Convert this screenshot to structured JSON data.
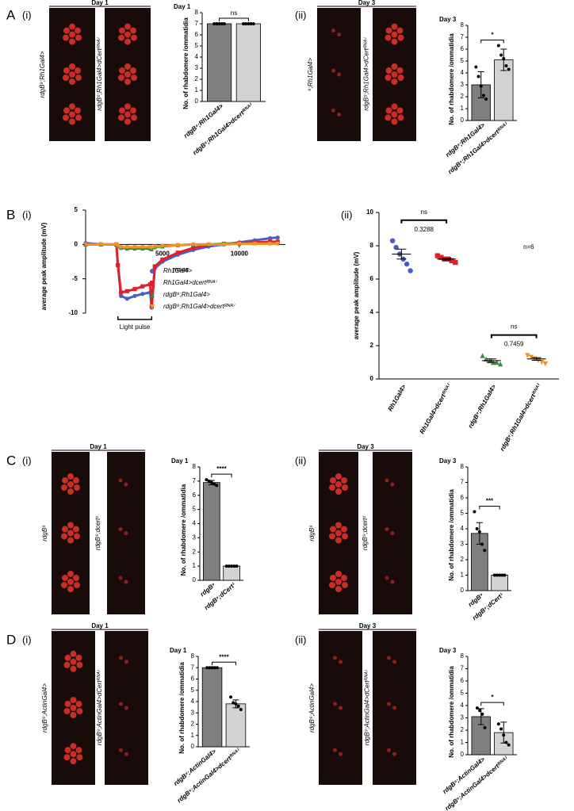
{
  "figure": {
    "panel_letters": [
      "A",
      "B",
      "C",
      "D"
    ],
    "subpanel_labels": [
      "(i)",
      "(ii)",
      "(i)",
      "(ii)",
      "(i)",
      "(ii)",
      "(i)",
      "(ii)"
    ],
    "image_panels": [
      {
        "header": "Day 1",
        "labels": [
          "rdgB⁹;Rh1Gal4>",
          "rdgB⁹;Rh1Gal4>dCertᴿᴺᴬⁱ"
        ]
      },
      {
        "header": "Day 3",
        "labels": [
          "⁹;Rh1Gal4>",
          "rdgB⁹;Rh1Gal4>dCertᴿᴺᴬⁱ"
        ]
      },
      {
        "header": "Day 1",
        "labels": [
          "rdgB⁹",
          "rdgB⁹;dcert¹"
        ]
      },
      {
        "header": "Day 3",
        "labels": [
          "rdgB⁹",
          "rdgB⁹;dcert¹"
        ]
      },
      {
        "header": "Day 1",
        "labels": [
          "rdgB⁹;ActinGal4>",
          "rdgB⁹;ActinGal4>dCertᴿᴺᴬⁱ"
        ]
      },
      {
        "header": "Day 3",
        "labels": [
          "rdgB⁹;ActinGal4>",
          "rdgB⁹;ActinGal4>dCertᴿᴺᴬⁱ"
        ]
      }
    ]
  },
  "chart_data": [
    {
      "type": "bar",
      "title": "Day 1",
      "ylabel": "No. of rhabdomere /ommatidia",
      "categories": [
        "rdgB⁹;Rh1Gal4>",
        "rdgB⁹;Rh1Gal4>dcertᴿᴺᴬⁱ"
      ],
      "values": [
        7,
        7
      ],
      "errors": [
        0,
        0
      ],
      "points": [
        [
          7,
          7,
          7,
          7,
          7
        ],
        [
          7,
          7,
          7,
          7,
          7
        ]
      ],
      "colors": [
        "#7f7f7f",
        "#d3d3d3"
      ],
      "significance": "ns",
      "ylim": [
        0,
        8
      ],
      "yticks": [
        0,
        1,
        2,
        3,
        4,
        5,
        6,
        7,
        8
      ]
    },
    {
      "type": "bar",
      "title": "Day 3",
      "ylabel": "No. of rhabdomere /ommatidia",
      "categories": [
        "rdgB⁹;Rh1Gal4>",
        "rdgB⁹;Rh1Gal4>dcertᴿᴺᴬⁱ"
      ],
      "values": [
        3,
        5.1
      ],
      "errors": [
        1.1,
        0.9
      ],
      "points": [
        [
          4.5,
          3.7,
          2.9,
          2.1,
          1.8
        ],
        [
          6.3,
          5.5,
          5.2,
          4.6,
          4.3
        ]
      ],
      "colors": [
        "#7f7f7f",
        "#d3d3d3"
      ],
      "significance": "*",
      "ylim": [
        0,
        8
      ],
      "yticks": [
        0,
        1,
        2,
        3,
        4,
        5,
        6,
        7,
        8
      ]
    },
    {
      "type": "line",
      "ylabel": "average peak amplitude (mV)",
      "xlabel": "msec",
      "x": [
        0,
        1000,
        2000,
        2100,
        2300,
        2700,
        3200,
        3700,
        4200,
        4300,
        4500,
        5000,
        6000,
        7000,
        8000,
        9000,
        10000,
        11000,
        12000,
        12500
      ],
      "series": [
        {
          "name": "Rh1Gal4>",
          "color": "#4a5cc6",
          "marker": "circle",
          "values": [
            0.2,
            0,
            0,
            -3,
            -7.5,
            -7.9,
            -7.5,
            -7.2,
            -7,
            -9.2,
            -3.5,
            -2.5,
            -1.5,
            -0.8,
            -0.3,
            0,
            0.3,
            0.6,
            0.9,
            1
          ]
        },
        {
          "name": "Rh1Gal4>dcertᴿᴺᴬⁱ",
          "color": "#e0202a",
          "marker": "square",
          "values": [
            0,
            0,
            0,
            -3,
            -7,
            -6.8,
            -6.5,
            -6.1,
            -5.8,
            -9,
            -3.2,
            -2.2,
            -1.2,
            -0.5,
            -0.1,
            0.1,
            0.2,
            0.3,
            0.4,
            0.4
          ]
        },
        {
          "name": "rdgB⁹;Rh1Gal4>",
          "color": "#3c8c3c",
          "marker": "triangle",
          "values": [
            0,
            0,
            0,
            -0.3,
            -0.5,
            -0.6,
            -0.6,
            -0.6,
            -0.6,
            -0.7,
            -0.4,
            -0.3,
            -0.1,
            0,
            0,
            0.1,
            0.1,
            0.2,
            0.2,
            0.2
          ]
        },
        {
          "name": "rdgB⁹;Rh1Gal4>dcertᴿᴺᴬⁱ",
          "color": "#f0922a",
          "marker": "triangle-down",
          "values": [
            0,
            0,
            0,
            -0.2,
            -0.4,
            -0.4,
            -0.4,
            -0.4,
            -0.4,
            -0.5,
            -0.3,
            -0.2,
            -0.1,
            0,
            0,
            0,
            0.1,
            0.1,
            0.1,
            0.1
          ]
        }
      ],
      "annotation": {
        "text": "Light pulse",
        "x": [
          2100,
          4300
        ]
      },
      "xlim": [
        0,
        13000
      ],
      "xticks": [
        5000,
        10000
      ],
      "ylim": [
        -10,
        5
      ],
      "yticks": [
        -10,
        -5,
        0,
        5
      ]
    },
    {
      "type": "dot",
      "ylabel": "average peak amplitude (mV)",
      "groups": [
        {
          "name": "Rh1Gal4>",
          "color": "#4a5cc6",
          "marker": "circle",
          "values": [
            8.3,
            7.9,
            7.5,
            7.2,
            6.9,
            6.5
          ],
          "mean": 7.5,
          "sem": 0.3
        },
        {
          "name": "Rh1Gal4>dcertᴿᴺᴬⁱ",
          "color": "#e0202a",
          "marker": "square",
          "values": [
            7.4,
            7.3,
            7.2,
            7.2,
            7.1,
            7
          ],
          "mean": 7.2,
          "sem": 0.06
        },
        {
          "name": "rdgB⁹;Rh1Gal4>",
          "color": "#3c8c3c",
          "marker": "triangle",
          "values": [
            1.4,
            1.2,
            1.1,
            1,
            1,
            0.9
          ],
          "mean": 1.1,
          "sem": 0.1
        },
        {
          "name": "rdgB⁹;Rh1Gal4>dcertᴿᴺᴬⁱ",
          "color": "#f0922a",
          "marker": "triangle-down",
          "values": [
            1.4,
            1.3,
            1.2,
            1.1,
            1,
            0.9
          ],
          "mean": 1.2,
          "sem": 0.08
        }
      ],
      "comparisons": [
        {
          "label": "ns",
          "p": 0.3288
        },
        {
          "label": "ns",
          "p": 0.7459
        }
      ],
      "annotation": "n=6",
      "ylim": [
        0,
        10
      ],
      "yticks": [
        0,
        2,
        4,
        6,
        8,
        10
      ]
    },
    {
      "type": "bar",
      "title": "Day 1",
      "ylabel": "No. of rhabdomere /ommatidia",
      "categories": [
        "rdgB⁹",
        "rdgB⁹;dCert¹"
      ],
      "values": [
        6.9,
        1
      ],
      "errors": [
        0.15,
        0
      ],
      "points": [
        [
          7.1,
          7,
          6.9,
          6.8,
          6.7
        ],
        [
          1,
          1,
          1,
          1,
          1
        ]
      ],
      "colors": [
        "#7f7f7f",
        "#d3d3d3"
      ],
      "significance": "****",
      "ylim": [
        0,
        8
      ],
      "yticks": [
        0,
        1,
        2,
        3,
        4,
        5,
        6,
        7,
        8
      ]
    },
    {
      "type": "bar",
      "title": "Day 3",
      "ylabel": "No. of rhabdomere /ommatidia",
      "categories": [
        "rdgB⁹",
        "rdgB⁹;dCert¹"
      ],
      "values": [
        3.7,
        1
      ],
      "errors": [
        0.7,
        0
      ],
      "points": [
        [
          5.1,
          4,
          3.8,
          3,
          2.6
        ],
        [
          1,
          1,
          1,
          1,
          1
        ]
      ],
      "colors": [
        "#7f7f7f",
        "#d3d3d3"
      ],
      "significance": "***",
      "ylim": [
        0,
        8
      ],
      "yticks": [
        0,
        1,
        2,
        3,
        4,
        5,
        6,
        7,
        8
      ]
    },
    {
      "type": "bar",
      "title": "Day 1",
      "ylabel": "No. of rhabdomere /ommatidia",
      "categories": [
        "rdgB⁹;ActinGal4>",
        "rdgB⁹;ActinGal4>dcertᴿᴺᴬⁱ"
      ],
      "values": [
        7,
        3.8
      ],
      "errors": [
        0,
        0.35
      ],
      "points": [
        [
          7,
          7,
          7,
          7,
          7
        ],
        [
          4.4,
          3.9,
          3.8,
          3.6,
          3.3
        ]
      ],
      "colors": [
        "#7f7f7f",
        "#d3d3d3"
      ],
      "significance": "****",
      "ylim": [
        0,
        8
      ],
      "yticks": [
        0,
        1,
        2,
        3,
        4,
        5,
        6,
        7,
        8
      ]
    },
    {
      "type": "bar",
      "title": "Day 3",
      "ylabel": "No. of rhabdomere /ommatidia",
      "categories": [
        "rdgB⁹;ActinGal4>",
        "rdgB⁹;ActinGal4>dcertᴿᴺᴬⁱ"
      ],
      "values": [
        3.1,
        1.8
      ],
      "errors": [
        0.65,
        0.85
      ],
      "points": [
        [
          3.8,
          3.6,
          3.3,
          2.2
        ],
        [
          2.5,
          2.1,
          1.6,
          1,
          0.8
        ]
      ],
      "colors": [
        "#7f7f7f",
        "#d3d3d3"
      ],
      "significance": "*",
      "ylim": [
        0,
        8
      ],
      "yticks": [
        0,
        1,
        2,
        3,
        4,
        5,
        6,
        7,
        8
      ]
    }
  ]
}
